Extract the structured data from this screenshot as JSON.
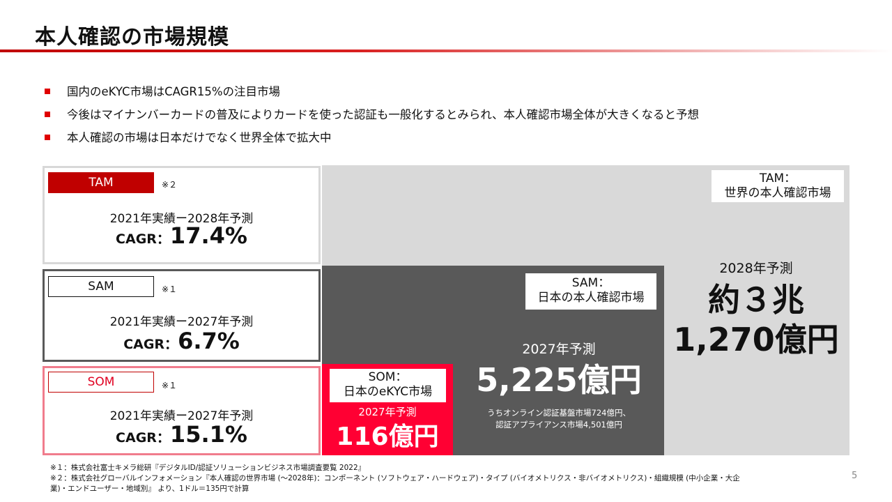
{
  "title": "本人確認の市場規模",
  "bullets": [
    "国内のeKYC市場はCAGR15%の注目市場",
    "今後はマイナンバーカードの普及によりカードを使った認証も一般化するとみられ、本人確認市場全体が大きくなると予想",
    "本人確認の市場は日本だけでなく世界全体で拡大中"
  ],
  "segments": {
    "tam": {
      "tag": "TAM",
      "note_ref": "※２",
      "period": "2021年実績ー2028年予測",
      "cagr_label": "CAGR：",
      "cagr_value": "17.4%",
      "market_label_1": "TAM：",
      "market_label_2": "世界の本人確認市場",
      "forecast_year": "2028年予測",
      "value_line1": "約３兆",
      "value_line2": "1,270億円"
    },
    "sam": {
      "tag": "SAM",
      "note_ref": "※１",
      "period": "2021年実績ー2027年予測",
      "cagr_label": "CAGR：",
      "cagr_value": "6.7%",
      "market_label_1": "SAM：",
      "market_label_2": "日本の本人確認市場",
      "forecast_year": "2027年予測",
      "value": "5,225億円",
      "breakdown_1": "うちオンライン認証基盤市場724億円、",
      "breakdown_2": "認証アプライアンス市場4,501億円"
    },
    "som": {
      "tag": "SOM",
      "note_ref": "※１",
      "period": "2021年実績ー2027年予測",
      "cagr_label": "CAGR：",
      "cagr_value": "15.1%",
      "market_label_1": "SOM：",
      "market_label_2": "日本のeKYC市場",
      "forecast_year": "2027年予測",
      "value": "116億円"
    }
  },
  "footnotes": [
    "※１：株式会社富士キメラ総研『デジタルID/認証ソリューションビジネス市場調査要覧 2022』",
    "※２：株式会社グローバルインフォメーション『本人確認の世界市場 (～2028年)：コンポーネント (ソフトウェア・ハードウェア)・タイプ (バイオメトリクス・非バイオメトリクス)・組織規模 (中小企業・大企",
    "業)・エンドユーザー・地域別』 より、1ドル＝135円で計算"
  ],
  "page_number": "5",
  "colors": {
    "accent_red": "#c00000",
    "tam_fill": "#d9d9d9",
    "sam_fill": "#595959",
    "som_fill": "#ff0033",
    "som_border": "#f07c8c"
  }
}
